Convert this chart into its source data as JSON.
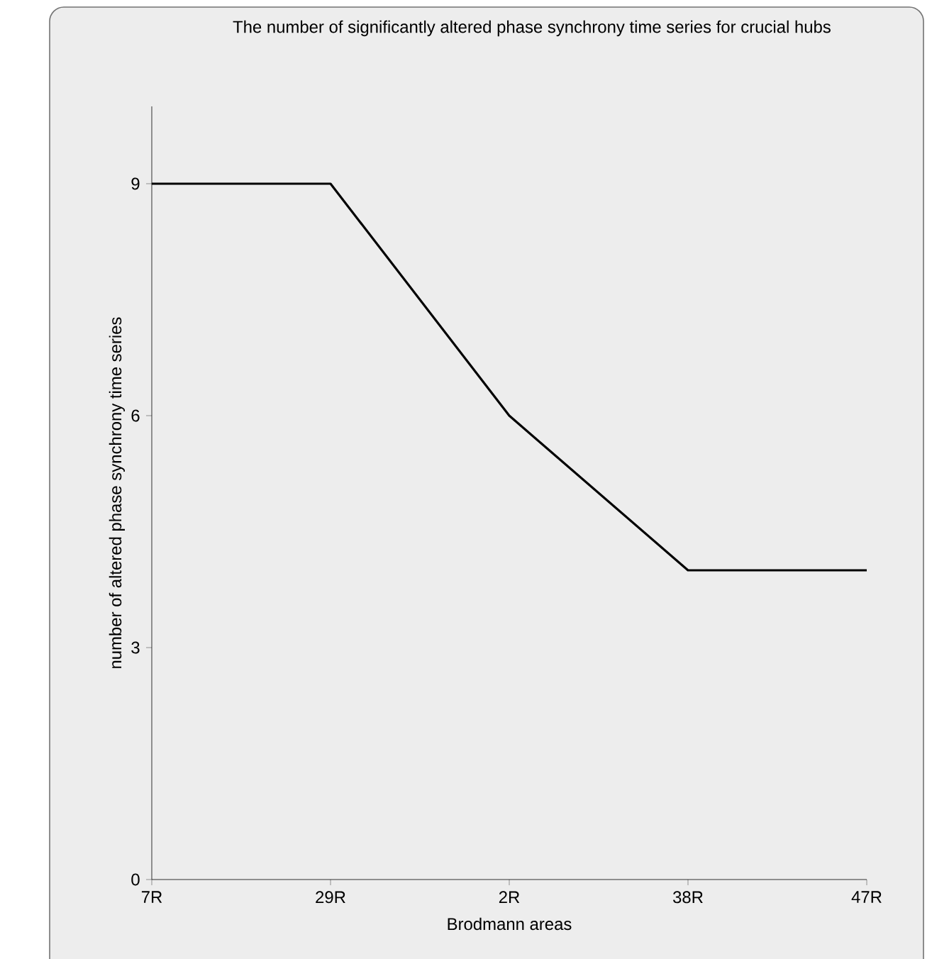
{
  "chart_data": {
    "type": "line",
    "title": "The number of significantly altered phase synchrony time series for crucial hubs",
    "xlabel": "Brodmann areas",
    "ylabel": "number of altered phase synchrony time series",
    "categories": [
      "7R",
      "29R",
      "2R",
      "38R",
      "47R"
    ],
    "values": [
      9,
      9,
      6,
      4,
      4
    ],
    "color": "#000000",
    "ylim": [
      0,
      10
    ],
    "yticks": [
      0,
      3,
      6,
      9
    ]
  }
}
